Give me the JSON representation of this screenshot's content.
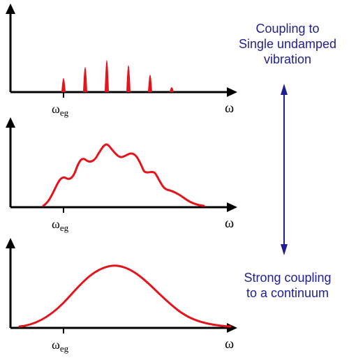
{
  "labels": {
    "top_line1": "Coupling to",
    "top_line2": "Single undamped",
    "top_line3": "vibration",
    "bottom_line1": "Strong coupling",
    "bottom_line2": "to a continuum"
  },
  "axis": {
    "omega": "ω",
    "omega_base": "ω",
    "omega_sub": "eg"
  },
  "colors": {
    "spectrum": "#e3141b",
    "arrow": "#1f1f8f",
    "axis": "#000000",
    "text": "#1f1f8f"
  }
}
